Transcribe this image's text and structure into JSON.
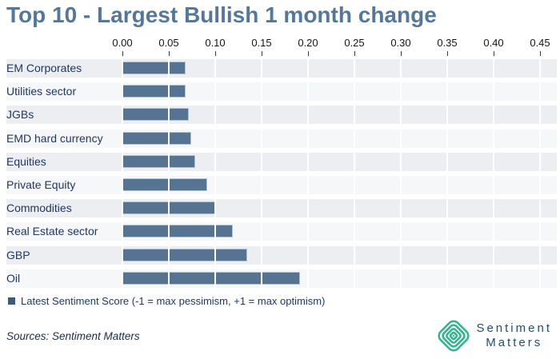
{
  "title": "Top 10 - Largest Bullish 1 month change",
  "chart_data": {
    "type": "bar",
    "orientation": "horizontal",
    "title": "Top 10 - Largest Bullish 1 month change",
    "categories": [
      "EM Corporates",
      "Utilities sector",
      "JGBs",
      "EMD hard currency",
      "Equities",
      "Private Equity",
      "Commodities",
      "Real Estate sector",
      "GBP",
      "Oil"
    ],
    "values": [
      0.066,
      0.066,
      0.07,
      0.072,
      0.077,
      0.09,
      0.099,
      0.117,
      0.133,
      0.19
    ],
    "x_ticks": [
      "0.00",
      "0.05",
      "0.10",
      "0.15",
      "0.20",
      "0.25",
      "0.30",
      "0.35",
      "0.40",
      "0.45"
    ],
    "xlim": [
      0,
      0.465
    ],
    "xlabel": "",
    "ylabel": "",
    "axis_position": "top",
    "grid": "vertical-white-on-striped-bands",
    "legend_position": "bottom-left",
    "legend": "Latest Sentiment Score (-1 = max pessimism, +1 = max optimism)",
    "bar_color": "#567492",
    "bar_border_color": "#b5c3d0",
    "band_color_a": "#eceef1",
    "band_color_b": "#f6f7f8"
  },
  "legend": {
    "label": "Latest Sentiment Score (-1 = max pessimism, +1 = max optimism)",
    "marker_color": "#3d5a76"
  },
  "footer": {
    "source": "Sources: Sentiment Matters"
  },
  "logo": {
    "line1": "Sentiment",
    "line2": "Matters",
    "green": "#2fb48c",
    "text_color": "#1d5070"
  },
  "colors": {
    "title": "#54789b",
    "category_text": "#1f3864",
    "axis_text": "#141414"
  }
}
